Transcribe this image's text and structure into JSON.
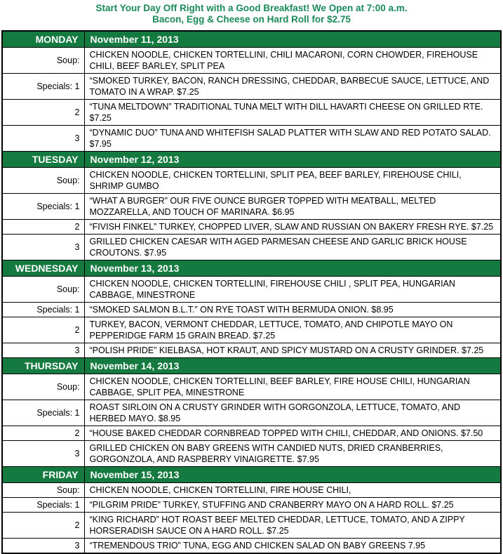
{
  "banner": {
    "line1": "Start Your Day Off Right with a Good Breakfast! We Open at 7:00 a.m.",
    "line2": "Bacon, Egg & Cheese on Hard Roll for $2.75"
  },
  "colors": {
    "banner_text": "#1b8a5a",
    "day_header_bg": "#147a40",
    "day_header_text": "#ffffff",
    "border": "#000000"
  },
  "days": [
    {
      "day": "MONDAY",
      "date": "November 11, 2013",
      "rows": [
        {
          "label": "Soup:",
          "text": "CHICKEN NOODLE, CHICKEN TORTELLINI, CHILI MACARONI, CORN CHOWDER, FIREHOUSE CHILI, BEEF BARLEY, SPLIT PEA"
        },
        {
          "label": "Specials: 1",
          "text": "“SMOKED TURKEY, BACON, RANCH DRESSING, CHEDDAR, BARBECUE SAUCE, LETTUCE, AND TOMATO IN A WRAP. $7.25"
        },
        {
          "label": "2",
          "text": "“TUNA MELTDOWN” TRADITIONAL TUNA MELT WITH DILL HAVARTI CHEESE ON GRILLED RTE. $7.25"
        },
        {
          "label": "3",
          "text": "“DYNAMIC DUO” TUNA AND WHITEFISH SALAD PLATTER WITH SLAW AND RED POTATO SALAD. $7.95"
        }
      ]
    },
    {
      "day": "TUESDAY",
      "date": "November 12, 2013",
      "rows": [
        {
          "label": "Soup:",
          "text": "CHICKEN NOODLE, CHICKEN TORTELLINI, SPLIT PEA, BEEF BARLEY, FIREHOUSE CHILI, SHRIMP GUMBO"
        },
        {
          "label": "Specials: 1",
          "text": "“WHAT A BURGER” OUR FIVE OUNCE BURGER TOPPED WITH MEATBALL, MELTED MOZZARELLA, AND TOUCH OF MARINARA. $6.95"
        },
        {
          "label": "2",
          "text": "“FIVISH FINKEL” TURKEY, CHOPPED LIVER, SLAW AND RUSSIAN ON BAKERY FRESH RYE. $7.25"
        },
        {
          "label": "3",
          "text": "GRILLED CHICKEN CAESAR WITH AGED PARMESAN CHEESE AND GARLIC BRICK HOUSE CROUTONS. $7.95"
        }
      ]
    },
    {
      "day": "WEDNESDAY",
      "date": "November 13, 2013",
      "rows": [
        {
          "label": "Soup:",
          "text": "CHICKEN NOODLE, CHICKEN TORTELLINI, FIREHOUSE CHILI , SPLIT PEA, HUNGARIAN CABBAGE, MINESTRONE"
        },
        {
          "label": "Specials: 1",
          "text": "“SMOKED SALMON B.L.T.” ON RYE TOAST WITH BERMUDA ONION. $8.95"
        },
        {
          "label": "2",
          "text": "TURKEY, BACON, VERMONT CHEDDAR, LETTUCE, TOMATO, AND CHIPOTLE MAYO ON PEPPERIDGE FARM 15 GRAIN BREAD. $7.25"
        },
        {
          "label": "3",
          "text": "“POLISH PRIDE” KIELBASA, HOT KRAUT, AND SPICY MUSTARD ON A CRUSTY GRINDER. $7.25"
        }
      ]
    },
    {
      "day": "THURSDAY",
      "date": "November 14, 2013",
      "rows": [
        {
          "label": "Soup:",
          "text": "CHICKEN NOODLE, CHICKEN TORTELLINI, BEEF BARLEY, FIRE HOUSE CHILI, HUNGARIAN CABBAGE, SPLIT PEA, MINESTRONE"
        },
        {
          "label": "Specials: 1",
          "text": "ROAST SIRLOIN ON A CRUSTY GRINDER WITH GORGONZOLA, LETTUCE, TOMATO, AND HERBED MAYO. $8.95"
        },
        {
          "label": "2",
          "text": "“HOUSE BAKED CHEDDAR CORNBREAD TOPPED WITH CHILI, CHEDDAR, AND ONIONS. $7.50"
        },
        {
          "label": "3",
          "text": "GRILLED CHICKEN ON BABY GREENS WITH CANDIED NUTS, DRIED CRANBERRIES, GORGONZOLA, AND RASPBERRY VINAIGRETTE. $7.95"
        }
      ]
    },
    {
      "day": "FRIDAY",
      "date": "November 15, 2013",
      "rows": [
        {
          "label": "Soup:",
          "text": "CHICKEN NOODLE, CHICKEN TORTELLINI, FIRE HOUSE CHILI,"
        },
        {
          "label": "Specials: 1",
          "text": "“PILGRIM PRIDE” TURKEY, STUFFING AND CRANBERRY MAYO ON A HARD ROLL. $7.25"
        },
        {
          "label": "2",
          "text": "“KING RICHARD” HOT ROAST BEEF MELTED CHEDDAR, LETTUCE, TOMATO, AND A ZIPPY HORSERADISH SAUCE ON A HARD ROLL. $7.25"
        },
        {
          "label": "3",
          "text": "“TREMENDOUS TRIO” TUNA, EGG AND CHICKEN SALAD ON BABY GREENS 7.95"
        }
      ]
    }
  ]
}
